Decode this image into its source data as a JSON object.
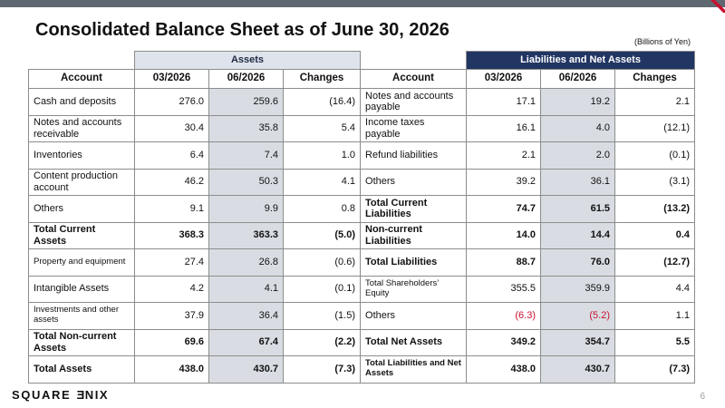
{
  "title": "Consolidated Balance Sheet as of June 30, 2026",
  "unit_note": "(Billions of Yen)",
  "sections": {
    "assets": "Assets",
    "liabilities": "Liabilities and Net Assets"
  },
  "headers": [
    "Account",
    "03/2026",
    "06/2026",
    "Changes",
    "Account",
    "03/2026",
    "06/2026",
    "Changes"
  ],
  "rows": [
    {
      "a": [
        "Cash and deposits",
        "276.0",
        "259.6",
        "(16.4)"
      ],
      "l": [
        "Notes and accounts payable",
        "17.1",
        "19.2",
        "2.1"
      ]
    },
    {
      "a": [
        "Notes and accounts receivable",
        "30.4",
        "35.8",
        "5.4"
      ],
      "l": [
        "Income taxes payable",
        "16.1",
        "4.0",
        "(12.1)"
      ]
    },
    {
      "a": [
        "Inventories",
        "6.4",
        "7.4",
        "1.0"
      ],
      "l": [
        "Refund liabilities",
        "2.1",
        "2.0",
        "(0.1)"
      ]
    },
    {
      "a": [
        "Content production account",
        "46.2",
        "50.3",
        "4.1"
      ],
      "l": [
        "Others",
        "39.2",
        "36.1",
        "(3.1)"
      ]
    },
    {
      "a": [
        "Others",
        "9.1",
        "9.9",
        "0.8"
      ],
      "l": [
        "Total Current Liabilities",
        "74.7",
        "61.5",
        "(13.2)"
      ]
    },
    {
      "a": [
        "Total Current Assets",
        "368.3",
        "363.3",
        "(5.0)"
      ],
      "l": [
        "Non-current Liabilities",
        "14.0",
        "14.4",
        "0.4"
      ]
    },
    {
      "a": [
        "Property and equipment",
        "27.4",
        "26.8",
        "(0.6)"
      ],
      "l": [
        "Total Liabilities",
        "88.7",
        "76.0",
        "(12.7)"
      ]
    },
    {
      "a": [
        "Intangible Assets",
        "4.2",
        "4.1",
        "(0.1)"
      ],
      "l": [
        "Total Shareholders’ Equity",
        "355.5",
        "359.9",
        "4.4"
      ]
    },
    {
      "a": [
        "Investments and other assets",
        "37.9",
        "36.4",
        "(1.5)"
      ],
      "l": [
        "Others",
        "(6.3)",
        "(5.2)",
        "1.1"
      ]
    },
    {
      "a": [
        "Total Non-current Assets",
        "69.6",
        "67.4",
        "(2.2)"
      ],
      "l": [
        "Total Net Assets",
        "349.2",
        "354.7",
        "5.5"
      ]
    },
    {
      "a": [
        "Total Assets",
        "438.0",
        "430.7",
        "(7.3)"
      ],
      "l": [
        "Total Liabilities and Net Assets",
        "438.0",
        "430.7",
        "(7.3)"
      ]
    }
  ],
  "footer": {
    "logo_part1": "SQUARE ",
    "logo_mirrored": "E",
    "logo_part2": "NIX",
    "page_number": "6"
  },
  "colors": {
    "top_bar": "#5f6770",
    "liabilities_header": "#223663",
    "assets_header": "#dfe4ec",
    "shade": "#d9dde3",
    "negative_red": "#c8102e",
    "accent_red": "#c8102e"
  }
}
